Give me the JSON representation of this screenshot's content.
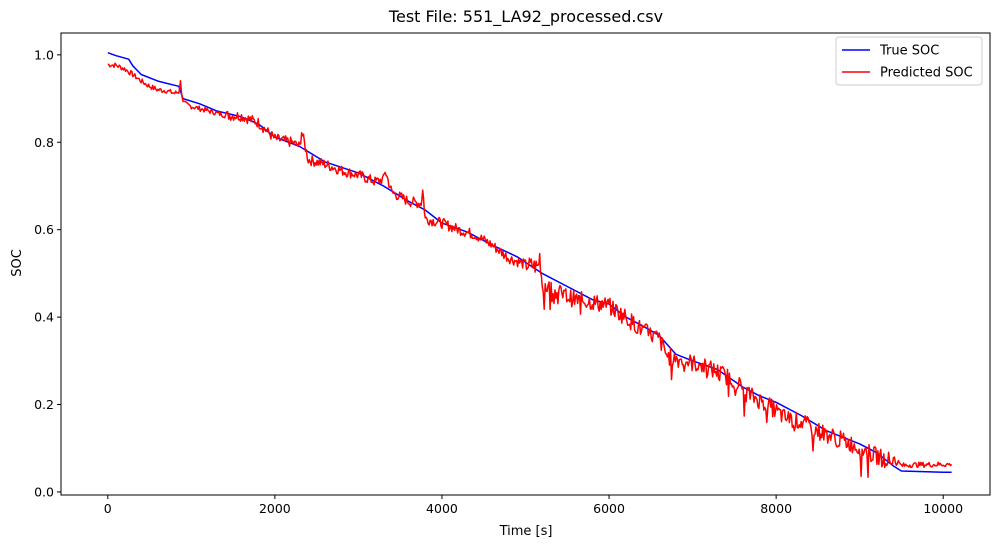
{
  "chart_data": {
    "type": "line",
    "title": "Test File: 551_LA92_processed.csv",
    "xlabel": "Time [s]",
    "ylabel": "SOC",
    "xlim": [
      -560,
      10560
    ],
    "ylim": [
      -0.007,
      1.05
    ],
    "xticks": [
      0,
      2000,
      4000,
      6000,
      8000,
      10000
    ],
    "xtick_labels": [
      "0",
      "2000",
      "4000",
      "6000",
      "8000",
      "10000"
    ],
    "yticks": [
      0.0,
      0.2,
      0.4,
      0.6,
      0.8,
      1.0
    ],
    "ytick_labels": [
      "0.0",
      "0.2",
      "0.4",
      "0.6",
      "0.8",
      "1.0"
    ],
    "grid": false,
    "legend_position": "top-right",
    "series": [
      {
        "name": "True SOC",
        "color": "#0000ff",
        "x": [
          0,
          100,
          250,
          300,
          400,
          600,
          850,
          900,
          1100,
          1300,
          1600,
          1800,
          2000,
          2300,
          2600,
          3000,
          3300,
          3600,
          3800,
          4000,
          4300,
          4600,
          4900,
          5200,
          5500,
          5800,
          6000,
          6200,
          6400,
          6600,
          6800,
          7000,
          7300,
          7600,
          7800,
          8000,
          8300,
          8600,
          8800,
          9000,
          9200,
          9400,
          9500,
          10000,
          10100
        ],
        "y": [
          1.005,
          0.998,
          0.99,
          0.975,
          0.955,
          0.94,
          0.928,
          0.9,
          0.888,
          0.872,
          0.858,
          0.842,
          0.812,
          0.79,
          0.755,
          0.73,
          0.7,
          0.665,
          0.645,
          0.615,
          0.595,
          0.565,
          0.538,
          0.5,
          0.47,
          0.44,
          0.43,
          0.4,
          0.38,
          0.358,
          0.315,
          0.3,
          0.28,
          0.24,
          0.22,
          0.205,
          0.175,
          0.14,
          0.125,
          0.11,
          0.09,
          0.06,
          0.048,
          0.045,
          0.045
        ]
      },
      {
        "name": "Predicted SOC",
        "color": "#ff0000",
        "x": [
          0,
          100,
          200,
          300,
          400,
          500,
          600,
          700,
          800,
          850,
          870,
          900,
          1000,
          1200,
          1400,
          1600,
          1800,
          2000,
          2200,
          2300,
          2320,
          2400,
          2600,
          2800,
          3000,
          3200,
          3300,
          3320,
          3400,
          3600,
          3750,
          3770,
          3800,
          4000,
          4200,
          4400,
          4600,
          4800,
          5000,
          5150,
          5170,
          5200,
          5400,
          5600,
          5800,
          6000,
          6200,
          6400,
          6600,
          6700,
          6900,
          7100,
          7300,
          7500,
          7700,
          7900,
          8100,
          8300,
          8500,
          8700,
          8900,
          9100,
          9300,
          9450,
          9500,
          9600,
          10000,
          10100
        ],
        "y": [
          0.978,
          0.976,
          0.968,
          0.955,
          0.94,
          0.928,
          0.92,
          0.918,
          0.912,
          0.915,
          0.938,
          0.89,
          0.882,
          0.872,
          0.862,
          0.86,
          0.845,
          0.808,
          0.8,
          0.79,
          0.825,
          0.76,
          0.75,
          0.735,
          0.725,
          0.71,
          0.715,
          0.735,
          0.685,
          0.665,
          0.66,
          0.69,
          0.625,
          0.615,
          0.6,
          0.588,
          0.565,
          0.535,
          0.52,
          0.515,
          0.54,
          0.475,
          0.455,
          0.44,
          0.435,
          0.425,
          0.4,
          0.37,
          0.35,
          0.31,
          0.3,
          0.29,
          0.275,
          0.255,
          0.22,
          0.2,
          0.17,
          0.16,
          0.14,
          0.125,
          0.11,
          0.09,
          0.075,
          0.07,
          0.06,
          0.062,
          0.063,
          0.063
        ]
      }
    ]
  }
}
